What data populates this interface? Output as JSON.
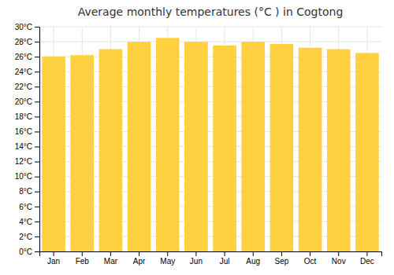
{
  "chart_data": {
    "type": "bar",
    "title": "Average monthly temperatures (°C ) in Cogtong",
    "categories": [
      "Jan",
      "Feb",
      "Mar",
      "Apr",
      "May",
      "Jun",
      "Jul",
      "Aug",
      "Sep",
      "Oct",
      "Nov",
      "Dec"
    ],
    "values": [
      26.0,
      26.2,
      27.0,
      28.0,
      28.5,
      28.0,
      27.5,
      28.0,
      27.7,
      27.2,
      27.0,
      26.5
    ],
    "color": "#FFD040",
    "ylim": [
      0,
      30
    ],
    "yticks": [
      {
        "value": 0,
        "label": "0°C"
      },
      {
        "value": 2,
        "label": "2°C"
      },
      {
        "value": 4,
        "label": "4°C"
      },
      {
        "value": 6,
        "label": "6°C"
      },
      {
        "value": 8,
        "label": "8°C"
      },
      {
        "value": 10,
        "label": "10°C"
      },
      {
        "value": 12,
        "label": "12°C"
      },
      {
        "value": 14,
        "label": "14°C"
      },
      {
        "value": 16,
        "label": "16°C"
      },
      {
        "value": 18,
        "label": "18°C"
      },
      {
        "value": 20,
        "label": "20°C"
      },
      {
        "value": 22,
        "label": "22°C"
      },
      {
        "value": 24,
        "label": "24°C"
      },
      {
        "value": 26,
        "label": "26°C"
      },
      {
        "value": 28,
        "label": "28°C"
      },
      {
        "value": 30,
        "label": "30°C"
      }
    ],
    "grid": true
  }
}
